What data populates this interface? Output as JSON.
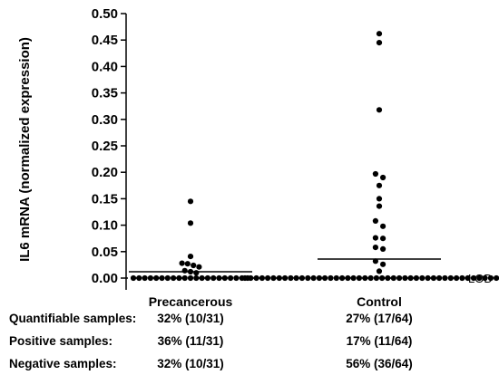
{
  "chart_data": {
    "type": "scatter",
    "ylabel": "IL6 mRNA (normalized expression)",
    "ylim": [
      0,
      0.5
    ],
    "yticks": [
      "0.00",
      "0.05",
      "0.10",
      "0.15",
      "0.20",
      "0.25",
      "0.30",
      "0.35",
      "0.40",
      "0.45",
      "0.50"
    ],
    "categories": [
      "Precancerous",
      "Control"
    ],
    "lod_label": "LOD",
    "lod_value": 0,
    "groups": [
      {
        "name": "Precancerous",
        "mean": 0.012,
        "values": [
          0.145,
          0.104,
          0.041,
          0.028,
          0.027,
          0.024,
          0.021,
          0.014,
          0.012,
          0.01,
          0,
          0,
          0,
          0,
          0,
          0,
          0,
          0,
          0,
          0,
          0,
          0,
          0,
          0,
          0,
          0,
          0,
          0,
          0,
          0,
          0
        ]
      },
      {
        "name": "Control",
        "mean": 0.036,
        "values": [
          0.462,
          0.445,
          0.318,
          0.197,
          0.19,
          0.175,
          0.15,
          0.136,
          0.108,
          0.098,
          0.076,
          0.075,
          0.058,
          0.055,
          0.032,
          0.026,
          0.013,
          0,
          0,
          0,
          0,
          0,
          0,
          0,
          0,
          0,
          0,
          0,
          0,
          0,
          0,
          0,
          0,
          0,
          0,
          0,
          0,
          0,
          0,
          0,
          0,
          0,
          0,
          0,
          0,
          0,
          0,
          0,
          0,
          0,
          0,
          0,
          0,
          0,
          0,
          0,
          0,
          0,
          0,
          0,
          0,
          0,
          0,
          0,
          0
        ]
      }
    ]
  },
  "stats": [
    {
      "label": "Quantifiable samples:",
      "values": [
        "32% (10/31)",
        "27% (17/64)"
      ]
    },
    {
      "label": "Positive samples:",
      "values": [
        "36% (11/31)",
        "17% (11/64)"
      ]
    },
    {
      "label": "Negative samples:",
      "values": [
        "32% (10/31)",
        "56% (36/64)"
      ]
    }
  ]
}
